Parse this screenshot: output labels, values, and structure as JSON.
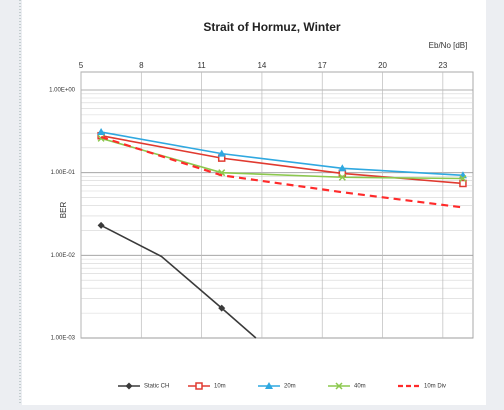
{
  "chart_data": {
    "type": "line",
    "title": "Strait of Hormuz, Winter",
    "x_label": "Eb/No [dB]",
    "y_label": "BER",
    "log_y": true,
    "grid": true,
    "legend": "bottom",
    "xlim": [
      5,
      24.5
    ],
    "xticks": [
      5,
      8,
      11,
      14,
      17,
      20,
      23
    ],
    "ylim": [
      0.001,
      1
    ],
    "yticks": [
      {
        "value": 0.001,
        "label": "1.00E-03"
      },
      {
        "value": 0.01,
        "label": "1.00E-02"
      },
      {
        "value": 0.1,
        "label": "1.00E-01"
      },
      {
        "value": 1,
        "label": "1.00E+00"
      }
    ],
    "series": [
      {
        "name": "Static CH",
        "color": "#3a3a3a",
        "marker": "diamond",
        "x": [
          6,
          9,
          12,
          13.7
        ],
        "values": [
          0.023,
          0.0097,
          0.0023,
          0.001
        ],
        "markers_at": [
          0,
          2
        ]
      },
      {
        "name": "10m",
        "color": "#e03a30",
        "marker": "square",
        "x": [
          6,
          12,
          18,
          24
        ],
        "values": [
          0.28,
          0.15,
          0.098,
          0.074
        ]
      },
      {
        "name": "20m",
        "color": "#2fa8e0",
        "marker": "triangle",
        "x": [
          6,
          12,
          18,
          24
        ],
        "values": [
          0.31,
          0.17,
          0.113,
          0.093
        ]
      },
      {
        "name": "40m",
        "color": "#8cc84e",
        "marker": "cross",
        "x": [
          6,
          12,
          18,
          24
        ],
        "values": [
          0.26,
          0.1,
          0.088,
          0.085
        ]
      },
      {
        "name": "10m Div",
        "color": "#ff2a2a",
        "marker": "none",
        "dashed": true,
        "x": [
          6,
          12,
          18,
          24
        ],
        "values": [
          0.27,
          0.093,
          0.058,
          0.038
        ]
      }
    ]
  }
}
